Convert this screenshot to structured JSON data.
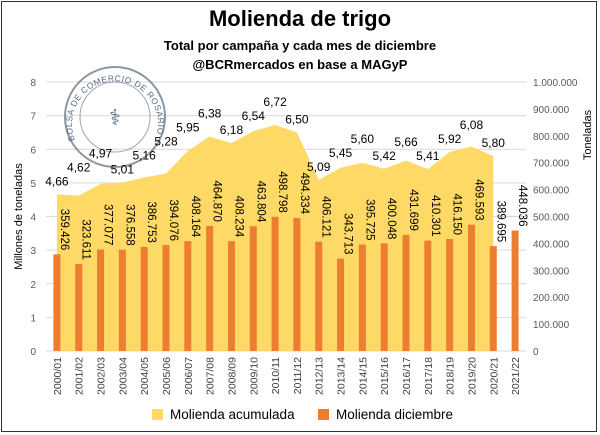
{
  "chart_data": {
    "type": "bar+area",
    "title": "Molienda de trigo",
    "subtitle": "Total por campaña y cada mes de diciembre",
    "subtitle2": "@BCRmercados en base a MAGyP",
    "ylabel": "Millones de toneladas",
    "y2label": "Toneladas",
    "ylim": [
      0,
      8
    ],
    "y2lim": [
      0,
      1000000
    ],
    "yticks": [
      "0",
      "1",
      "2",
      "3",
      "4",
      "5",
      "6",
      "7",
      "8"
    ],
    "y2ticks": [
      "0",
      "100.000",
      "200.000",
      "300.000",
      "400.000",
      "500.000",
      "600.000",
      "700.000",
      "800.000",
      "900.000",
      "1.000.000"
    ],
    "categories": [
      "2000/01",
      "2001/02",
      "2002/03",
      "2003/04",
      "2004/05",
      "2005/06",
      "2006/07",
      "2007/08",
      "2008/09",
      "2009/10",
      "2010/11",
      "2011/12",
      "2012/13",
      "2013/14",
      "2014/15",
      "2015/16",
      "2016/17",
      "2017/18",
      "2018/19",
      "2019/20",
      "2020/21",
      "2021/22"
    ],
    "series": [
      {
        "name": "Molienda acumulada",
        "axis": "left",
        "type": "area",
        "color": "#FFD966",
        "values": [
          4.66,
          4.62,
          4.97,
          5.01,
          5.16,
          5.28,
          5.95,
          6.38,
          6.18,
          6.54,
          6.72,
          6.5,
          5.09,
          5.45,
          5.6,
          5.42,
          5.66,
          5.41,
          5.92,
          6.08,
          5.8,
          null
        ],
        "labels": [
          "4,66",
          "4,62",
          "4,97",
          "5,01",
          "5,16",
          "5,28",
          "5,95",
          "6,38",
          "6,18",
          "6,54",
          "6,72",
          "6,50",
          "5,09",
          "5,45",
          "5,60",
          "5,42",
          "5,66",
          "5,41",
          "5,92",
          "6,08",
          "5,80",
          ""
        ]
      },
      {
        "name": "Molienda diciembre",
        "axis": "right",
        "type": "bar",
        "color": "#ED7D31",
        "values": [
          359426,
          323611,
          377077,
          376558,
          386753,
          394076,
          408164,
          464870,
          408234,
          463804,
          498798,
          494334,
          406121,
          343713,
          395725,
          400048,
          431699,
          410301,
          416150,
          469593,
          389695,
          448036
        ],
        "labels": [
          "359.426",
          "323.611",
          "377.077",
          "376.558",
          "386.753",
          "394.076",
          "408.164",
          "464.870",
          "408.234",
          "463.804",
          "498.798",
          "494.334",
          "406.121",
          "343.713",
          "395.725",
          "400.048",
          "431.699",
          "410.301",
          "416.150",
          "469.593",
          "389.695",
          "448.036"
        ]
      }
    ],
    "legend": "bottom",
    "watermark": "BOLSA DE COMERCIO DE ROSARIO",
    "grid": true
  }
}
